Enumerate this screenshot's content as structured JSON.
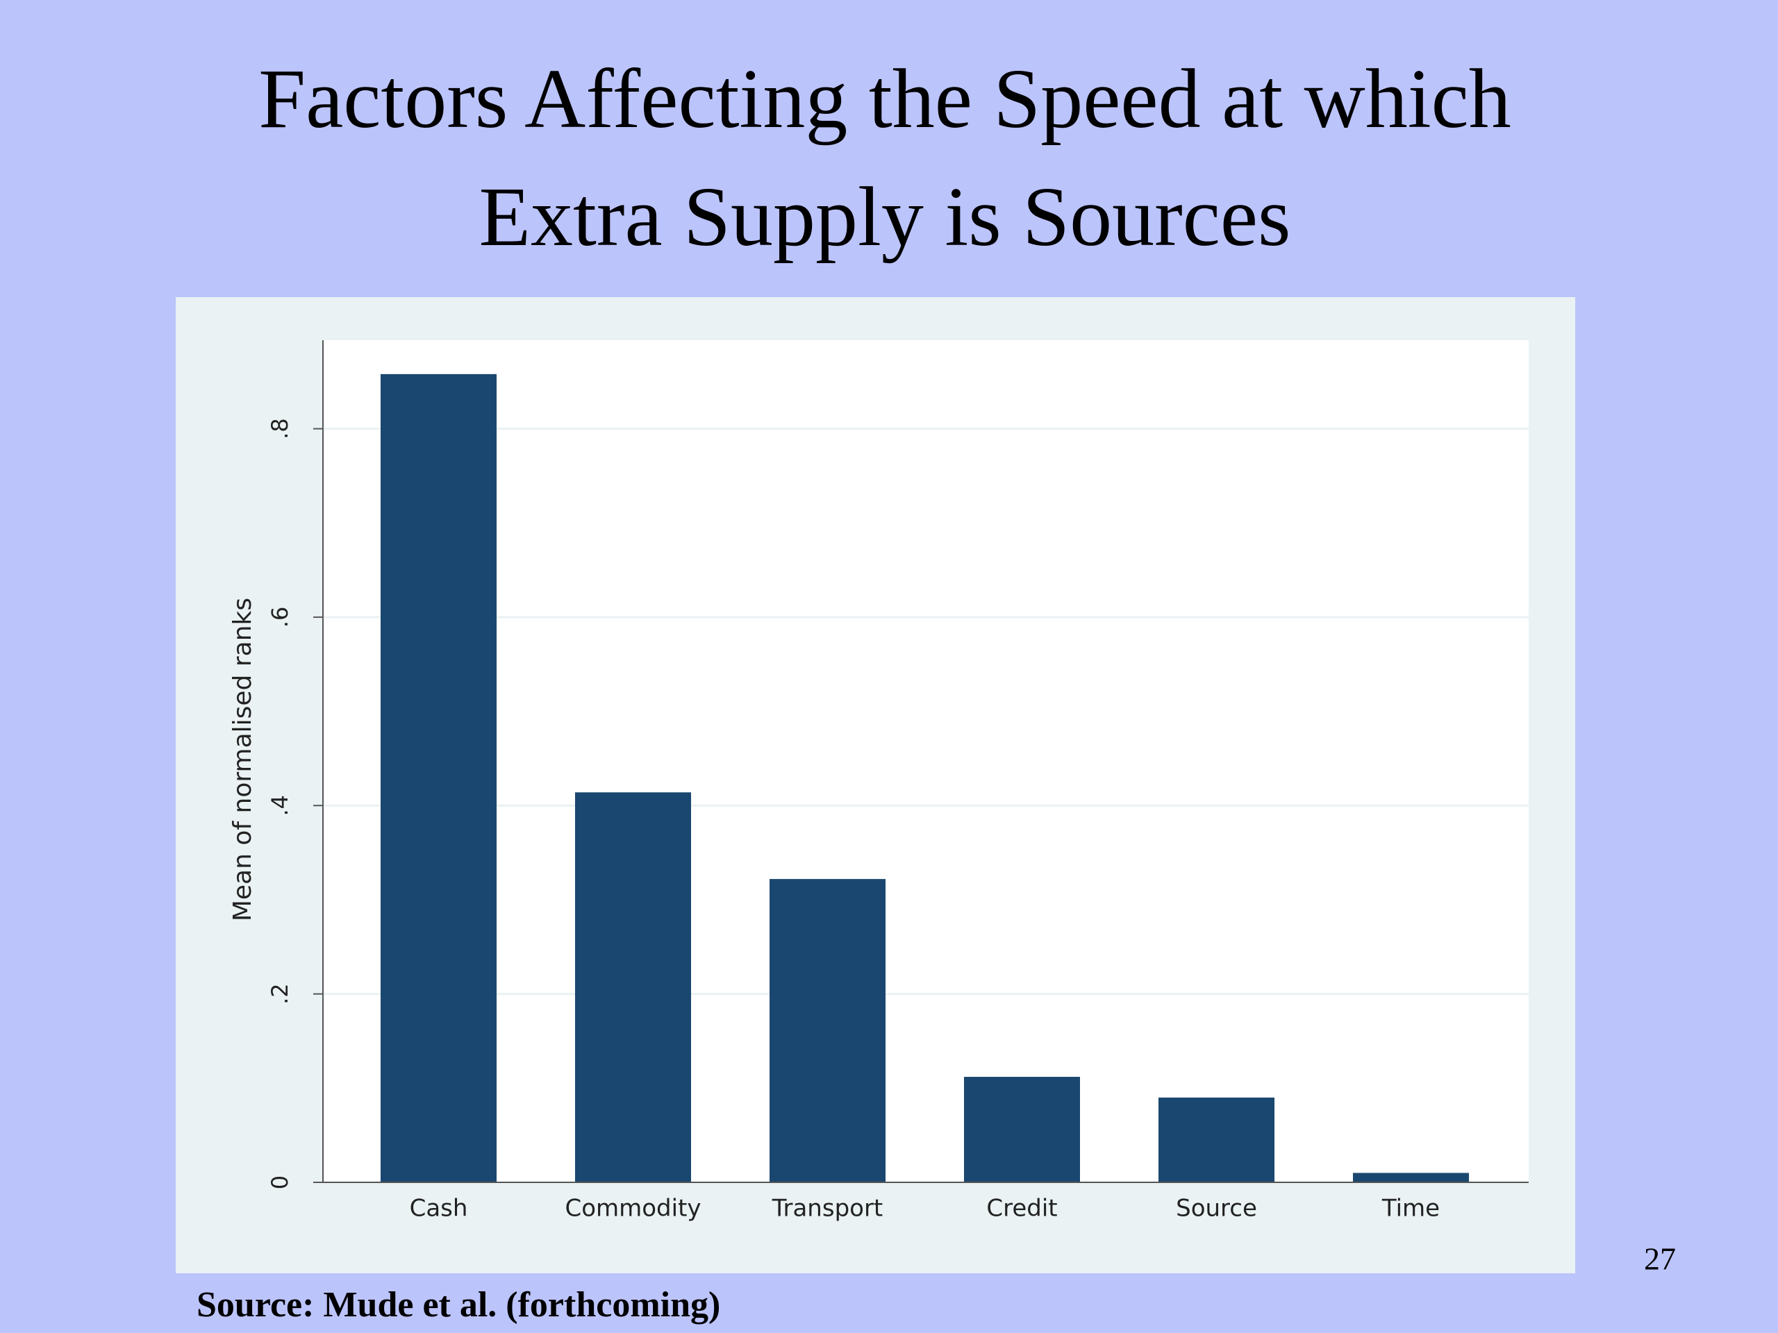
{
  "title": [
    "Factors Affecting the Speed at which",
    "Extra Supply is Sources"
  ],
  "source": "Source: Mude et al. (forthcoming)",
  "page_number": 27,
  "chart_data": {
    "type": "bar",
    "y_label": "Mean of normalised ranks",
    "categories": [
      "Cash",
      "Commodity",
      "Transport",
      "Credit",
      "Source",
      "Time"
    ],
    "values": [
      0.858,
      0.414,
      0.322,
      0.112,
      0.09,
      0.01
    ],
    "color": "#1a476f",
    "ylim": [
      0,
      0.894
    ],
    "yticks": [
      0,
      {
        "value": 0.2,
        "label": ".2"
      },
      {
        "value": 0.4,
        "label": ".4"
      },
      {
        "value": 0.6,
        "label": ".6"
      },
      {
        "value": 0.8,
        "label": ".8"
      }
    ],
    "grid": true
  }
}
